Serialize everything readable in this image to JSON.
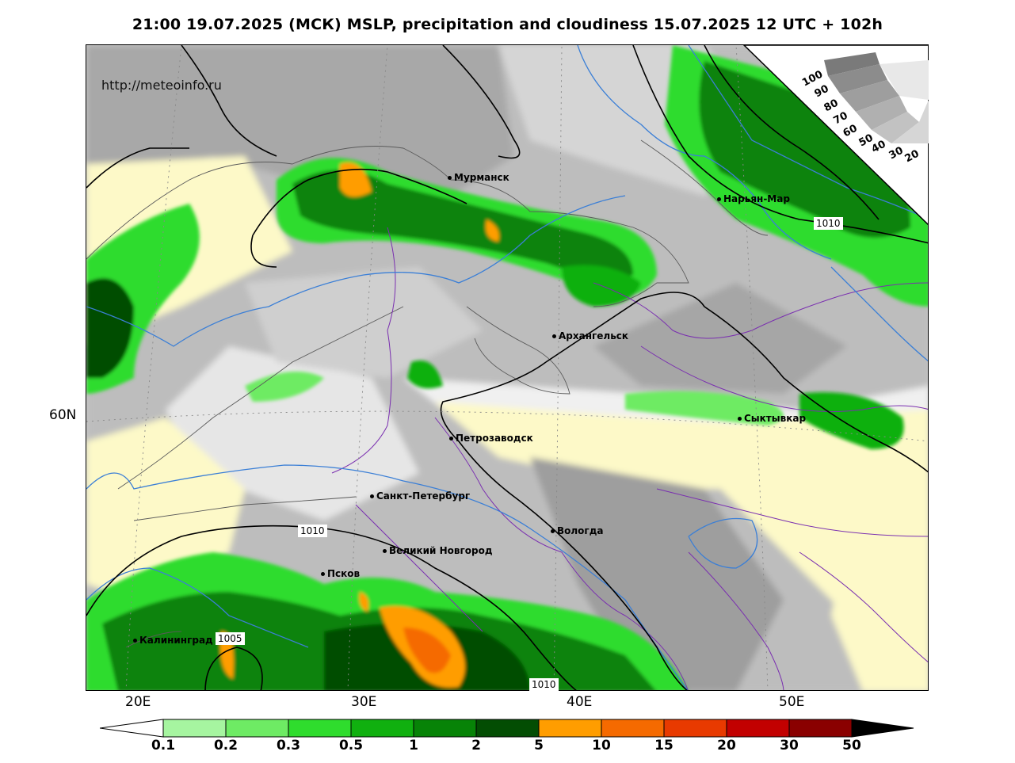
{
  "title": "21:00 19.07.2025 (МСК) MSLP, precipitation and cloudiness 15.07.2025 12 UTC + 102h",
  "source_url": "http://meteoinfo.ru",
  "lat_labels": [
    "60N"
  ],
  "lon_labels": [
    "20E",
    "30E",
    "40E",
    "50E"
  ],
  "cities": [
    {
      "name": "Мурманск"
    },
    {
      "name": "Нарьян-Мар"
    },
    {
      "name": "Архангельск"
    },
    {
      "name": "Сыктывкар"
    },
    {
      "name": "Петрозаводск"
    },
    {
      "name": "Санкт-Петербург"
    },
    {
      "name": "Вологда"
    },
    {
      "name": "Великий Новгород"
    },
    {
      "name": "Псков"
    },
    {
      "name": "Калининград"
    }
  ],
  "isobar_labels": [
    "1010",
    "1010",
    "1005",
    "1010"
  ],
  "precip_legend": {
    "labels": [
      "0.1",
      "0.2",
      "0.3",
      "0.5",
      "1",
      "2",
      "5",
      "10",
      "15",
      "20",
      "30",
      "50"
    ],
    "colors": [
      "#ffffff",
      "#a6f5a0",
      "#6eeb64",
      "#2fdc2d",
      "#10b00f",
      "#078307",
      "#034d03",
      "#ff9d00",
      "#f56a00",
      "#e83a00",
      "#c20000",
      "#8a0000",
      "#000000"
    ]
  },
  "cloud_legend": {
    "labels": [
      "100",
      "90",
      "80",
      "70",
      "60",
      "50",
      "40",
      "30",
      "20"
    ]
  },
  "colors": {
    "isobar": "#000000",
    "isotherm_blue": "#3b7fd6",
    "border_purple": "#7a2fb0",
    "coast": "#5a5a5a",
    "clear_sky": "#fdf9c8"
  }
}
